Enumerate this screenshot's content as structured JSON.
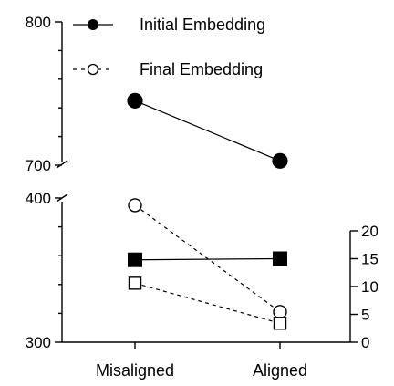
{
  "chart_data": {
    "type": "line",
    "categories": [
      "Misaligned",
      "Aligned"
    ],
    "legend": [
      {
        "label": "Initial Embedding",
        "style": "solid",
        "marker": "filled-circle"
      },
      {
        "label": "Final Embedding",
        "style": "dashed",
        "marker": "open-circle"
      }
    ],
    "legend_placement": "top-right",
    "left_axis": {
      "broken": true,
      "upper_segment": {
        "ylim": [
          700,
          800
        ],
        "ticks": [
          "800",
          "700"
        ]
      },
      "lower_segment": {
        "ylim": [
          300,
          400
        ],
        "ticks": [
          "400",
          "300"
        ]
      }
    },
    "right_axis": {
      "ylim": [
        0,
        20
      ],
      "ticks": [
        "20",
        "15",
        "10",
        "5",
        "0"
      ]
    },
    "series": [
      {
        "axis": "left",
        "style": "solid",
        "marker": "filled-circle",
        "values": [
          745,
          703
        ]
      },
      {
        "axis": "left",
        "style": "dashed",
        "marker": "open-circle",
        "values": [
          395,
          321
        ]
      },
      {
        "axis": "right",
        "style": "solid",
        "marker": "filled-square",
        "values": [
          14.8,
          15.0
        ]
      },
      {
        "axis": "right",
        "style": "dashed",
        "marker": "open-square",
        "values": [
          10.6,
          3.4
        ]
      }
    ],
    "colors": {
      "ink": "#000000",
      "background": "#ffffff"
    },
    "grid": false
  }
}
